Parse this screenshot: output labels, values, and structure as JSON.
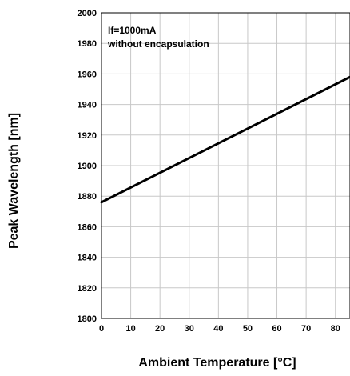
{
  "chart_data": {
    "type": "line",
    "xlabel": "Ambient Temperature [°C]",
    "ylabel": "Peak Wavelength [nm]",
    "xlim": [
      0,
      85
    ],
    "ylim": [
      1800,
      2000
    ],
    "xticks": [
      0,
      10,
      20,
      30,
      40,
      50,
      60,
      70,
      80
    ],
    "yticks": [
      1800,
      1820,
      1840,
      1860,
      1880,
      1900,
      1920,
      1940,
      1960,
      1980,
      2000
    ],
    "grid": true,
    "annotations": [
      "If=1000mA",
      "without encapsulation"
    ],
    "series": [
      {
        "x": [
          0,
          85
        ],
        "y": [
          1876,
          1958
        ],
        "color": "#000000"
      }
    ]
  }
}
